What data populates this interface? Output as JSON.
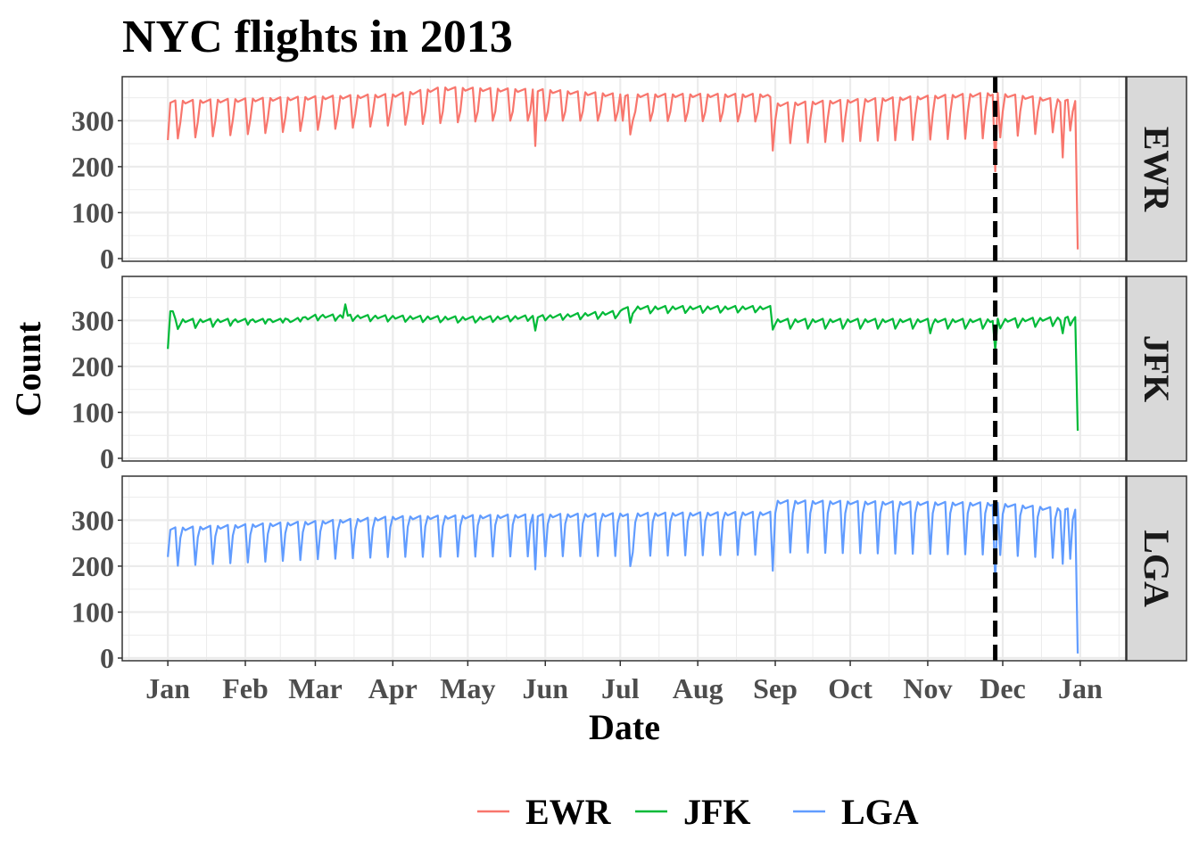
{
  "chart_data": {
    "type": "line",
    "title": "NYC flights in 2013",
    "xlabel": "Date",
    "ylabel": "Count",
    "x_range": [
      "2013-01-01",
      "2014-01-01"
    ],
    "x_tick_labels": [
      "Jan",
      "Feb",
      "Mar",
      "Apr",
      "May",
      "Jun",
      "Jul",
      "Aug",
      "Sep",
      "Oct",
      "Nov",
      "Dec",
      "Jan"
    ],
    "x_tick_dates": [
      "2013-01-01",
      "2013-02-01",
      "2013-03-01",
      "2013-04-01",
      "2013-05-01",
      "2013-06-01",
      "2013-07-01",
      "2013-08-01",
      "2013-09-01",
      "2013-10-01",
      "2013-11-01",
      "2013-12-01",
      "2014-01-01"
    ],
    "ylim": [
      0,
      390
    ],
    "y_ticks": [
      0,
      100,
      200,
      300
    ],
    "y_tick_labels": [
      "0",
      "100",
      "200",
      "300"
    ],
    "grid": true,
    "facets": "rows by origin, strip labels on right",
    "reference_line": {
      "x": "2013-11-28",
      "style": "dashed",
      "color": "#000000"
    },
    "legend": {
      "position": "bottom",
      "entries": [
        "EWR",
        "JFK",
        "LGA"
      ]
    },
    "series": [
      {
        "name": "EWR",
        "color": "#F8766D",
        "weekday_level": [
          [
            0,
            340
          ],
          [
            60,
            350
          ],
          [
            90,
            355
          ],
          [
            110,
            370
          ],
          [
            150,
            365
          ],
          [
            181,
            355
          ],
          [
            240,
            355
          ],
          [
            243,
            335
          ],
          [
            300,
            350
          ],
          [
            330,
            358
          ],
          [
            364,
            340
          ]
        ],
        "saturday_level": [
          [
            0,
            260
          ],
          [
            60,
            280
          ],
          [
            90,
            290
          ],
          [
            130,
            300
          ],
          [
            181,
            300
          ],
          [
            240,
            298
          ],
          [
            243,
            250
          ],
          [
            270,
            255
          ],
          [
            330,
            262
          ],
          [
            364,
            280
          ]
        ],
        "sunday_level": [
          [
            0,
            295
          ],
          [
            60,
            310
          ],
          [
            90,
            320
          ],
          [
            181,
            320
          ],
          [
            240,
            318
          ],
          [
            243,
            300
          ],
          [
            330,
            320
          ],
          [
            364,
            320
          ]
        ],
        "special_days": [
          {
            "day": 0,
            "value": 258
          },
          {
            "day": 147,
            "value": 245
          },
          {
            "day": 182,
            "value": 300
          },
          {
            "day": 185,
            "value": 270
          },
          {
            "day": 242,
            "value": 235
          },
          {
            "day": 331,
            "value": 190
          },
          {
            "day": 358,
            "value": 220
          },
          {
            "day": 364,
            "value": 20
          }
        ]
      },
      {
        "name": "JFK",
        "color": "#00BA38",
        "weekday_level": [
          [
            0,
            300
          ],
          [
            50,
            300
          ],
          [
            60,
            310
          ],
          [
            120,
            305
          ],
          [
            150,
            308
          ],
          [
            181,
            318
          ],
          [
            182,
            328
          ],
          [
            242,
            328
          ],
          [
            243,
            300
          ],
          [
            300,
            300
          ],
          [
            330,
            300
          ],
          [
            364,
            305
          ]
        ],
        "saturday_level": [
          [
            0,
            280
          ],
          [
            60,
            300
          ],
          [
            120,
            295
          ],
          [
            181,
            305
          ],
          [
            182,
            315
          ],
          [
            242,
            318
          ],
          [
            243,
            282
          ],
          [
            330,
            282
          ],
          [
            364,
            290
          ]
        ],
        "sunday_level": [
          [
            0,
            290
          ],
          [
            60,
            308
          ],
          [
            120,
            300
          ],
          [
            181,
            312
          ],
          [
            182,
            322
          ],
          [
            242,
            324
          ],
          [
            243,
            292
          ],
          [
            330,
            292
          ],
          [
            364,
            300
          ]
        ],
        "special_days": [
          {
            "day": 0,
            "value": 238
          },
          {
            "day": 1,
            "value": 320
          },
          {
            "day": 2,
            "value": 320
          },
          {
            "day": 71,
            "value": 335
          },
          {
            "day": 147,
            "value": 278
          },
          {
            "day": 185,
            "value": 295
          },
          {
            "day": 242,
            "value": 280
          },
          {
            "day": 305,
            "value": 272
          },
          {
            "day": 331,
            "value": 235
          },
          {
            "day": 358,
            "value": 272
          },
          {
            "day": 364,
            "value": 60
          }
        ]
      },
      {
        "name": "LGA",
        "color": "#619CFF",
        "weekday_level": [
          [
            0,
            280
          ],
          [
            60,
            295
          ],
          [
            90,
            305
          ],
          [
            181,
            312
          ],
          [
            242,
            315
          ],
          [
            243,
            340
          ],
          [
            330,
            335
          ],
          [
            364,
            320
          ]
        ],
        "saturday_level": [
          [
            0,
            200
          ],
          [
            60,
            215
          ],
          [
            90,
            220
          ],
          [
            181,
            222
          ],
          [
            242,
            225
          ],
          [
            243,
            230
          ],
          [
            330,
            225
          ],
          [
            364,
            215
          ]
        ],
        "sunday_level": [
          [
            0,
            260
          ],
          [
            60,
            275
          ],
          [
            90,
            285
          ],
          [
            181,
            295
          ],
          [
            242,
            300
          ],
          [
            243,
            315
          ],
          [
            330,
            315
          ],
          [
            364,
            300
          ]
        ],
        "special_days": [
          {
            "day": 0,
            "value": 220
          },
          {
            "day": 147,
            "value": 193
          },
          {
            "day": 185,
            "value": 200
          },
          {
            "day": 186,
            "value": 230
          },
          {
            "day": 242,
            "value": 190
          },
          {
            "day": 331,
            "value": 165
          },
          {
            "day": 358,
            "value": 205
          },
          {
            "day": 364,
            "value": 10
          }
        ]
      }
    ]
  }
}
